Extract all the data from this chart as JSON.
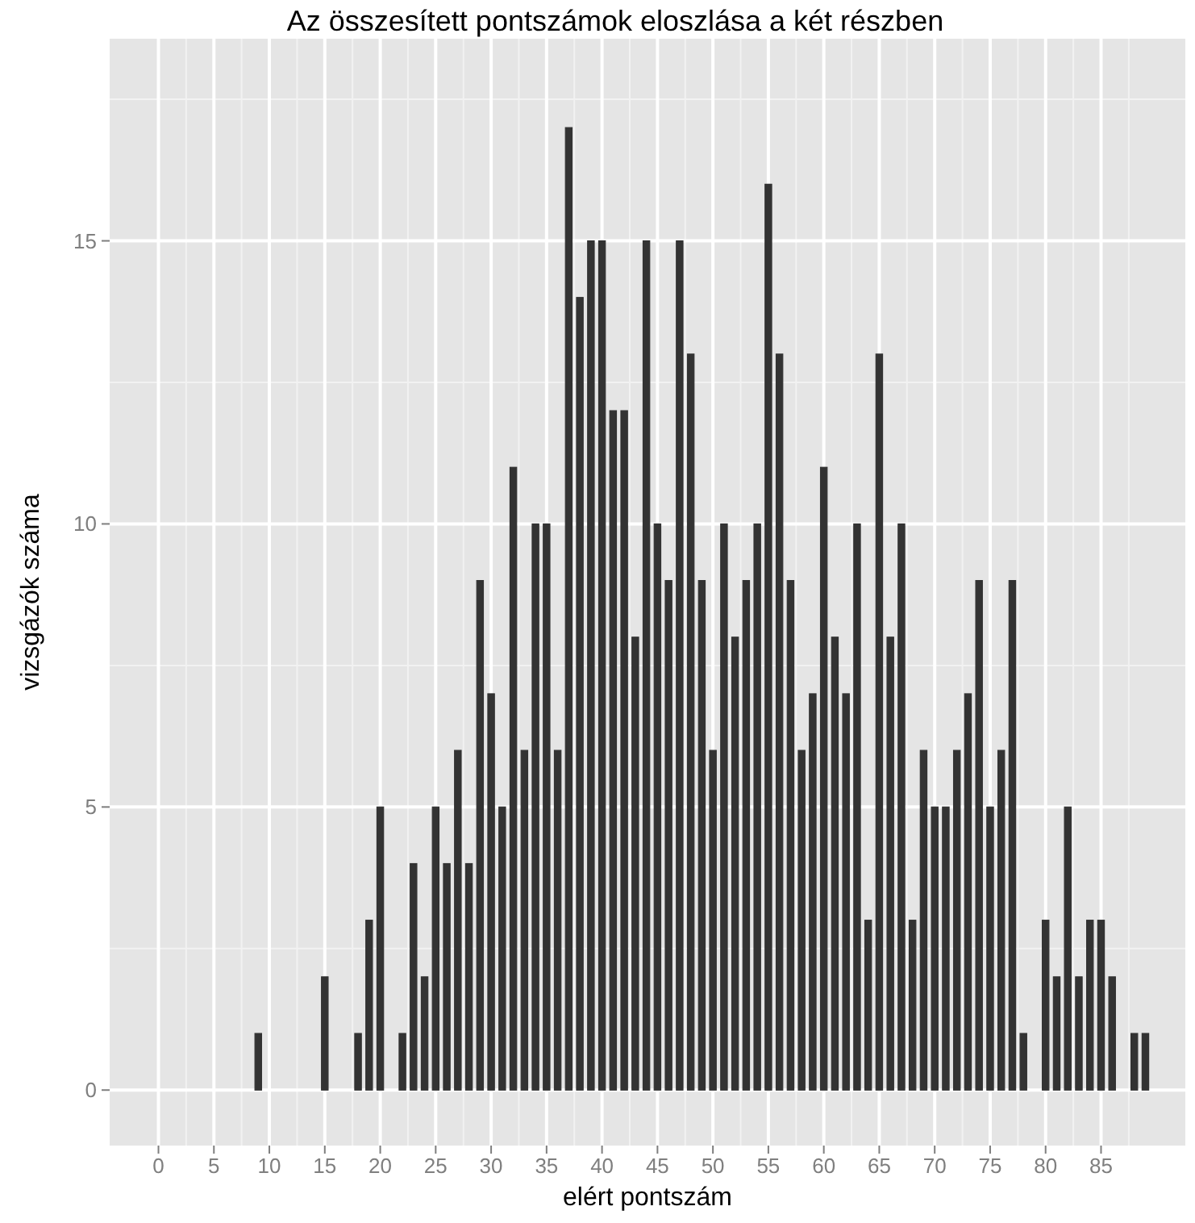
{
  "chart_data": {
    "type": "bar",
    "title": "Az összesített pontszámok eloszlása a két részben",
    "xlabel": "elért pontszám",
    "ylabel": "vizsgázók száma",
    "x": [
      0,
      1,
      2,
      3,
      4,
      5,
      6,
      7,
      8,
      9,
      10,
      11,
      12,
      13,
      14,
      15,
      16,
      17,
      18,
      19,
      20,
      21,
      22,
      23,
      24,
      25,
      26,
      27,
      28,
      29,
      30,
      31,
      32,
      33,
      34,
      35,
      36,
      37,
      38,
      39,
      40,
      41,
      42,
      43,
      44,
      45,
      46,
      47,
      48,
      49,
      50,
      51,
      52,
      53,
      54,
      55,
      56,
      57,
      58,
      59,
      60,
      61,
      62,
      63,
      64,
      65,
      66,
      67,
      68,
      69,
      70,
      71,
      72,
      73,
      74,
      75,
      76,
      77,
      78,
      79,
      80,
      81,
      82,
      83,
      84,
      85,
      86,
      87,
      88,
      89
    ],
    "values": [
      0,
      0,
      0,
      0,
      0,
      0,
      0,
      0,
      0,
      1,
      0,
      0,
      0,
      0,
      0,
      2,
      0,
      0,
      1,
      3,
      5,
      0,
      1,
      4,
      2,
      5,
      4,
      6,
      4,
      9,
      7,
      5,
      11,
      6,
      10,
      10,
      6,
      17,
      14,
      15,
      15,
      12,
      12,
      8,
      15,
      10,
      9,
      15,
      13,
      9,
      6,
      10,
      8,
      9,
      10,
      16,
      13,
      9,
      6,
      7,
      11,
      8,
      7,
      10,
      3,
      13,
      8,
      10,
      3,
      6,
      5,
      5,
      6,
      7,
      9,
      5,
      6,
      9,
      1,
      0,
      3,
      2,
      5,
      2,
      3,
      3,
      2,
      0,
      1,
      1
    ],
    "color": "#333333",
    "xlim": [
      -4.4,
      92.6
    ],
    "xticks": [
      0,
      5,
      10,
      15,
      20,
      25,
      30,
      35,
      40,
      45,
      50,
      55,
      60,
      65,
      70,
      75,
      80,
      85
    ],
    "ylim": [
      -0.98,
      18.57
    ],
    "yticks": [
      0,
      5,
      10,
      15
    ],
    "grid": true
  }
}
